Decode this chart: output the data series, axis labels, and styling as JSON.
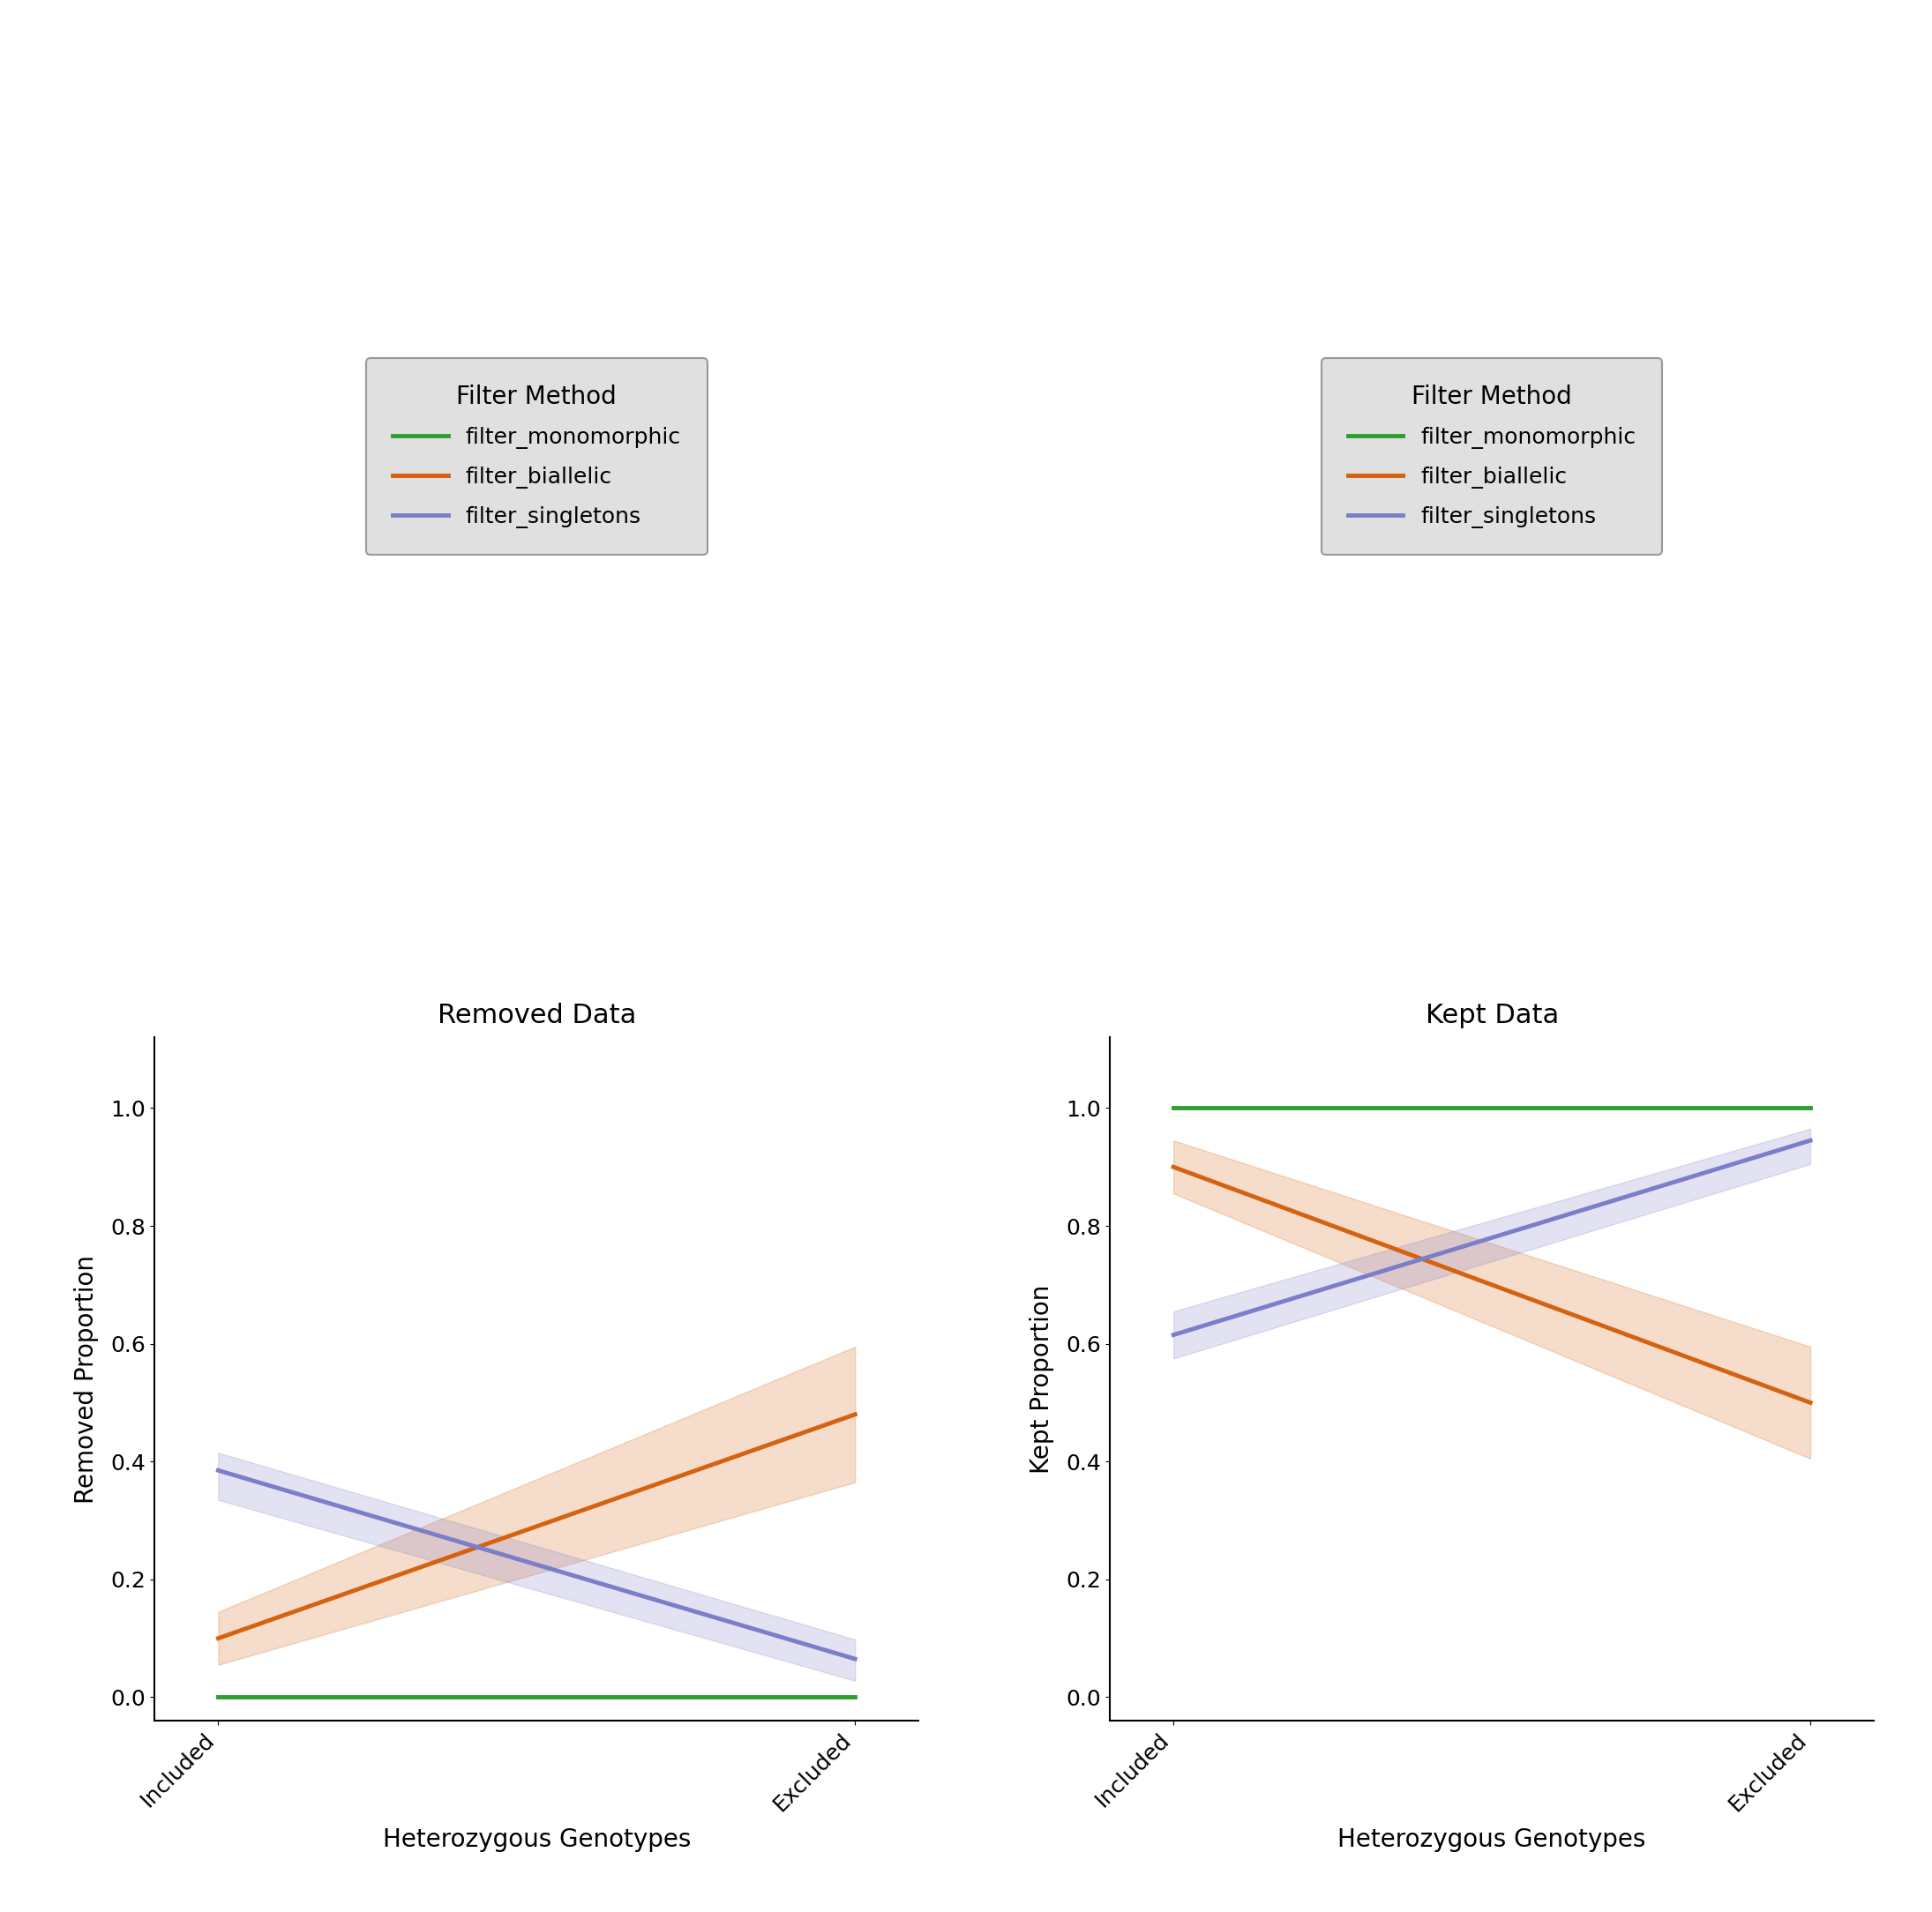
{
  "legend_title": "Filter Method",
  "filter_methods": [
    "filter_monomorphic",
    "filter_biallelic",
    "filter_singletons"
  ],
  "colors": {
    "filter_monomorphic": "#2ca02c",
    "filter_biallelic": "#d6620f",
    "filter_singletons": "#7b7ec8"
  },
  "x_labels": [
    "Included",
    "Excluded"
  ],
  "x_positions": [
    0,
    1
  ],
  "removed": {
    "title": "Removed Data",
    "ylabel": "Removed Proportion",
    "lines": {
      "filter_monomorphic": {
        "y": [
          0.0,
          0.0
        ],
        "ci_low": [
          0.0,
          0.0
        ],
        "ci_high": [
          0.0,
          0.0
        ]
      },
      "filter_biallelic": {
        "y": [
          0.1,
          0.48
        ],
        "ci_low": [
          0.055,
          0.365
        ],
        "ci_high": [
          0.145,
          0.595
        ]
      },
      "filter_singletons": {
        "y": [
          0.385,
          0.065
        ],
        "ci_low": [
          0.335,
          0.028
        ],
        "ci_high": [
          0.415,
          0.098
        ]
      }
    }
  },
  "kept": {
    "title": "Kept Data",
    "ylabel": "Kept Proportion",
    "lines": {
      "filter_monomorphic": {
        "y": [
          1.0,
          1.0
        ],
        "ci_low": [
          1.0,
          1.0
        ],
        "ci_high": [
          1.0,
          1.0
        ]
      },
      "filter_biallelic": {
        "y": [
          0.9,
          0.5
        ],
        "ci_low": [
          0.855,
          0.405
        ],
        "ci_high": [
          0.945,
          0.595
        ]
      },
      "filter_singletons": {
        "y": [
          0.615,
          0.945
        ],
        "ci_low": [
          0.575,
          0.905
        ],
        "ci_high": [
          0.655,
          0.965
        ]
      }
    }
  },
  "xlabel": "Heterozygous Genotypes",
  "ylim": [
    -0.04,
    1.12
  ],
  "yticks": [
    0.0,
    0.2,
    0.4,
    0.6,
    0.8,
    1.0
  ],
  "legend_bg": "#e0e0e0",
  "title_fontsize": 22,
  "label_fontsize": 20,
  "tick_fontsize": 18,
  "legend_fontsize": 18,
  "legend_title_fontsize": 20,
  "line_width": 3.5,
  "ci_alpha": 0.22
}
